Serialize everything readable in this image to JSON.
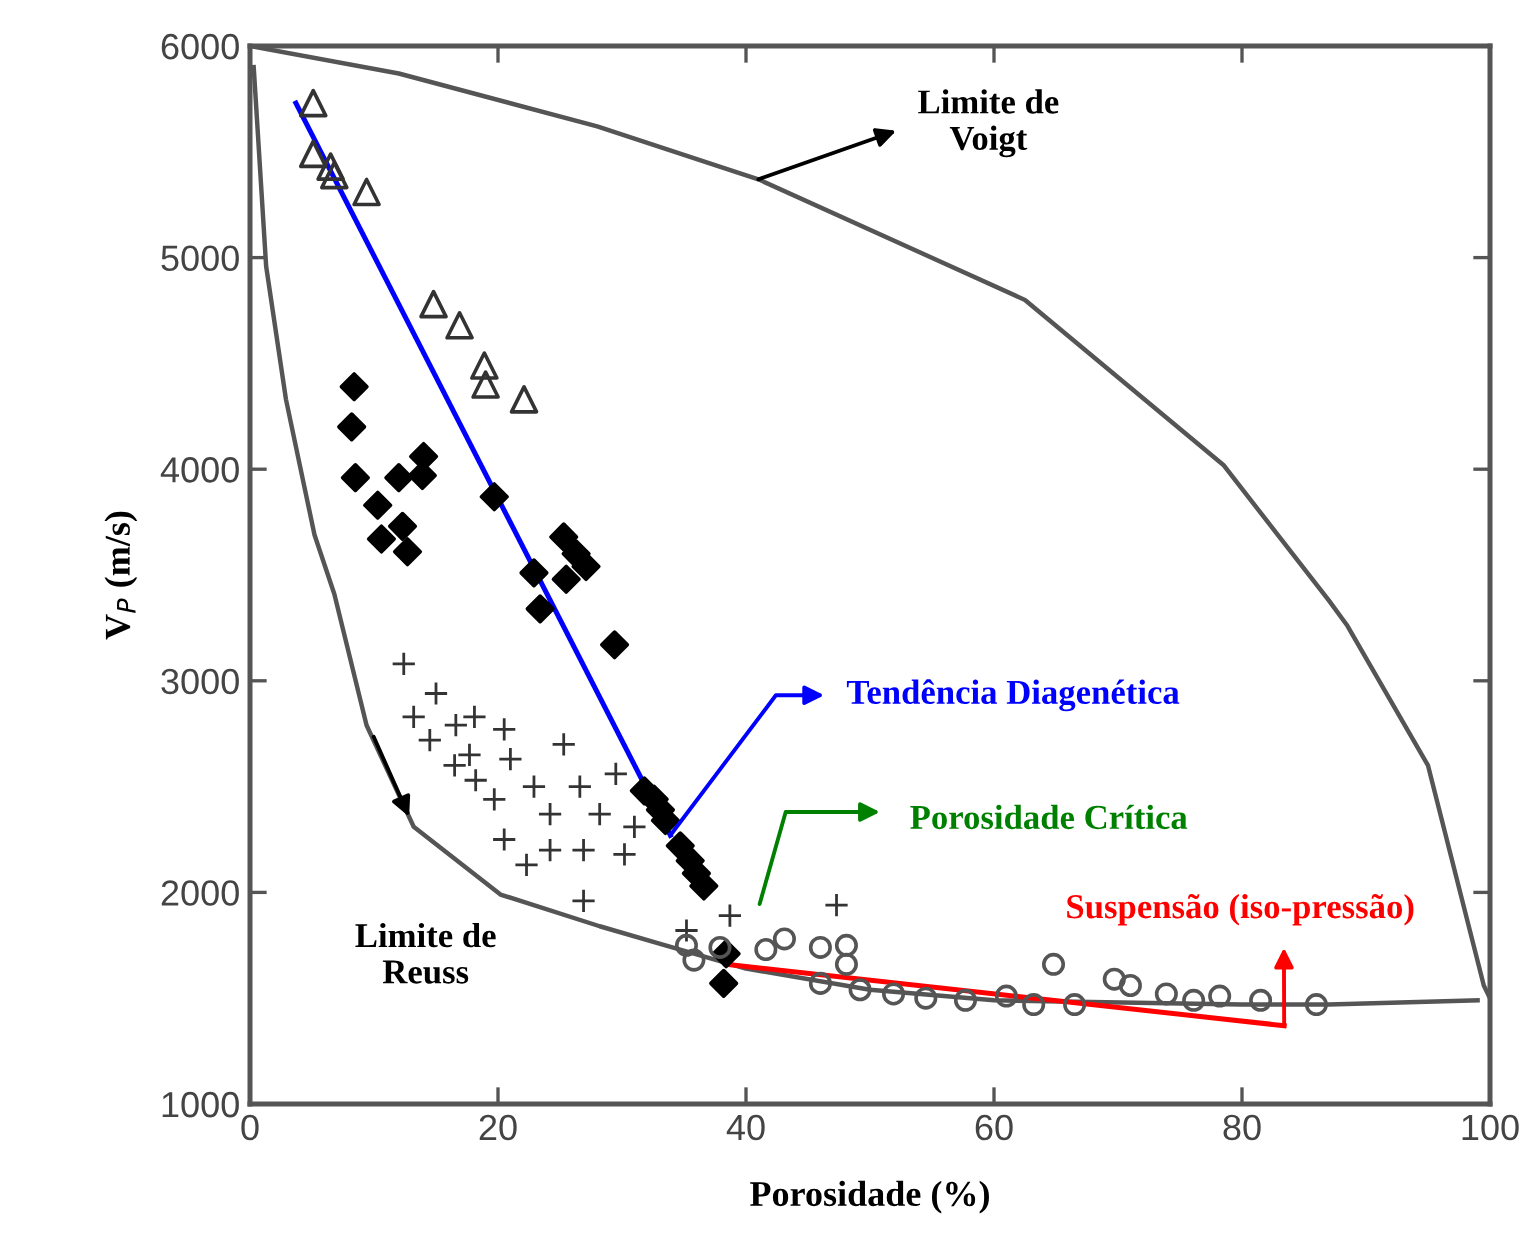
{
  "chart_data": {
    "type": "scatter",
    "xlabel": "Porosidade (%)",
    "ylabel": "V$_{P}$ (m/s)",
    "xlim": [
      0,
      100
    ],
    "ylim": [
      1000,
      6000
    ],
    "xticks": [
      0,
      20,
      40,
      60,
      80,
      100
    ],
    "yticks": [
      1000,
      2000,
      3000,
      4000,
      5000,
      6000
    ],
    "grid": false,
    "series": [
      {
        "type": "line",
        "color": "#555555",
        "marker": "none",
        "x": [
          0,
          12,
          28,
          41,
          62.5,
          78.5,
          87,
          88.5,
          95,
          99.5,
          100
        ],
        "values": [
          6000,
          5870,
          5620,
          5370,
          4800,
          4020,
          3380,
          3260,
          2600,
          1560,
          1500
        ]
      },
      {
        "type": "line",
        "color": "#555555",
        "marker": "none",
        "x": [
          0.3,
          1.3,
          2.9,
          5.2,
          6.8,
          9.4,
          13.2,
          20.2,
          28.2,
          33.5,
          40,
          50,
          60,
          80,
          87,
          99
        ],
        "values": [
          5900,
          4960,
          4330,
          3690,
          3410,
          2790,
          2310,
          1990,
          1840,
          1750,
          1640,
          1540,
          1490,
          1470,
          1470,
          1490
        ]
      },
      {
        "type": "line",
        "color": "#0000ff",
        "marker": "none",
        "x": [
          3.7,
          33.9
        ],
        "values": [
          5730,
          2270
        ]
      },
      {
        "type": "line",
        "color": "#ff0000",
        "marker": "none",
        "x": [
          38.4,
          83.4
        ],
        "values": [
          1660,
          1370
        ]
      },
      {
        "color": "#333333",
        "marker": "triangle",
        "x": [
          5.1,
          5.1,
          6.5,
          6.8,
          9.4,
          14.8,
          16.9,
          18.9,
          19.0,
          22.1
        ],
        "values": [
          5730,
          5490,
          5430,
          5390,
          5310,
          4780,
          4680,
          4490,
          4400,
          4330
        ]
      },
      {
        "color": "#000000",
        "marker": "diamond",
        "x": [
          8.4,
          8.2,
          8.5,
          12.0,
          14.0,
          13.9,
          10.3,
          12.3,
          10.6,
          12.7,
          19.7,
          22.9,
          25.3,
          26.3,
          27.1,
          25.5,
          23.4,
          29.4,
          31.8,
          32.6,
          33.1,
          33.5,
          34.7,
          35.5,
          36.0,
          36.6,
          38.4,
          38.2
        ],
        "values": [
          4390,
          4200,
          3960,
          3960,
          4060,
          3970,
          3830,
          3730,
          3670,
          3610,
          3870,
          3510,
          3680,
          3600,
          3540,
          3480,
          3340,
          3170,
          2480,
          2440,
          2390,
          2340,
          2220,
          2150,
          2090,
          2030,
          1710,
          1570
        ]
      },
      {
        "color": "#333333",
        "marker": "cross",
        "x": [
          12.4,
          15.0,
          13.2,
          14.5,
          16.6,
          18.1,
          20.5,
          17.7,
          16.5,
          18.2,
          19.7,
          21.0,
          22.9,
          25.3,
          26.6,
          28.2,
          24.2,
          20.5,
          22.3,
          24.2,
          26.9,
          30.2,
          29.5,
          31.0,
          26.9,
          38.7,
          47.3,
          35.2
        ],
        "values": [
          3080,
          2940,
          2830,
          2720,
          2790,
          2830,
          2770,
          2650,
          2600,
          2530,
          2440,
          2630,
          2500,
          2700,
          2500,
          2370,
          2370,
          2250,
          2130,
          2200,
          2200,
          2180,
          2560,
          2310,
          1960,
          1890,
          1940,
          1820
        ]
      },
      {
        "color": "#555555",
        "marker": "circle",
        "x": [
          37.9,
          41.6,
          43.1,
          46.0,
          48.1,
          48.1,
          46.0,
          49.2,
          51.9,
          54.5,
          57.7,
          61.0,
          64.8,
          63.2,
          66.5,
          69.7,
          71.0,
          73.9,
          76.1,
          78.2,
          81.5,
          86.0,
          35.2,
          35.8
        ],
        "values": [
          1740,
          1730,
          1780,
          1740,
          1750,
          1660,
          1570,
          1540,
          1520,
          1500,
          1490,
          1510,
          1660,
          1470,
          1470,
          1590,
          1560,
          1520,
          1490,
          1510,
          1490,
          1470,
          1750,
          1680
        ]
      }
    ],
    "annotations": [
      {
        "text": "Limite de\nVoigt",
        "x": 41,
        "y": 5370
      },
      {
        "text": "Limite de\nReuss",
        "x": 13.2,
        "y": 2310
      },
      {
        "text": "Tendência Diagenética",
        "x": 33.9,
        "y": 2270
      },
      "Porosidade Crítica",
      {
        "text": "Suspensão (iso-pressão)",
        "x": 83.4,
        "y": 1370
      }
    ]
  }
}
